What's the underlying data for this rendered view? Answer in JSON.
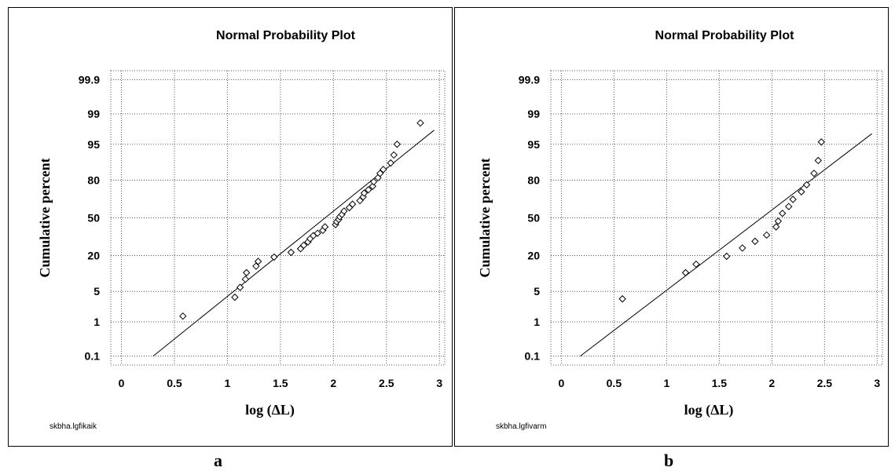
{
  "chart_data": [
    {
      "type": "scatter",
      "title": "Normal Probability Plot",
      "xlabel": "log (ΔL)",
      "ylabel": "Cumulative percent",
      "xlim": [
        -0.1,
        3.05
      ],
      "x_ticks": [
        0,
        0.5,
        1,
        1.5,
        2,
        2.5,
        3
      ],
      "y_ticks": [
        0.1,
        1,
        5,
        20,
        50,
        80,
        95,
        99,
        99.9
      ],
      "y_scale": "normal probability",
      "grid": true,
      "caption": "skbha.lgfikaik",
      "panel_label": "a",
      "points": [
        [
          0.58,
          1.4
        ],
        [
          1.07,
          3.8
        ],
        [
          1.12,
          6
        ],
        [
          1.17,
          8.5
        ],
        [
          1.18,
          11
        ],
        [
          1.27,
          14
        ],
        [
          1.29,
          16.5
        ],
        [
          1.44,
          19
        ],
        [
          1.6,
          22
        ],
        [
          1.69,
          24.5
        ],
        [
          1.72,
          27
        ],
        [
          1.76,
          29.5
        ],
        [
          1.78,
          32
        ],
        [
          1.81,
          34.5
        ],
        [
          1.85,
          36.5
        ],
        [
          1.9,
          39
        ],
        [
          1.92,
          42
        ],
        [
          2.02,
          44
        ],
        [
          2.03,
          46.5
        ],
        [
          2.05,
          48.5
        ],
        [
          2.06,
          51
        ],
        [
          2.08,
          53
        ],
        [
          2.1,
          56
        ],
        [
          2.15,
          59
        ],
        [
          2.18,
          62
        ],
        [
          2.25,
          65
        ],
        [
          2.28,
          68
        ],
        [
          2.29,
          71
        ],
        [
          2.33,
          73.5
        ],
        [
          2.37,
          76
        ],
        [
          2.38,
          79
        ],
        [
          2.42,
          81.5
        ],
        [
          2.44,
          84
        ],
        [
          2.47,
          86
        ],
        [
          2.54,
          89
        ],
        [
          2.57,
          92
        ],
        [
          2.6,
          95
        ],
        [
          2.82,
          98.3
        ]
      ],
      "fit_line": {
        "x": [
          0.3,
          2.95
        ],
        "y": [
          0.1,
          97.5
        ]
      }
    },
    {
      "type": "scatter",
      "title": "Normal Probability Plot",
      "xlabel": "log (ΔL)",
      "ylabel": "Cumulative percent",
      "xlim": [
        -0.1,
        3.05
      ],
      "x_ticks": [
        0,
        0.5,
        1,
        1.5,
        2,
        2.5,
        3
      ],
      "y_ticks": [
        0.1,
        1,
        5,
        20,
        50,
        80,
        95,
        99,
        99.9
      ],
      "y_scale": "normal probability",
      "grid": true,
      "caption": "skbha.lgfivarm",
      "panel_label": "b",
      "points": [
        [
          0.58,
          3.5
        ],
        [
          1.18,
          11
        ],
        [
          1.28,
          15
        ],
        [
          1.57,
          19.5
        ],
        [
          1.72,
          25
        ],
        [
          1.84,
          30
        ],
        [
          1.95,
          35
        ],
        [
          2.04,
          42
        ],
        [
          2.06,
          47
        ],
        [
          2.1,
          54
        ],
        [
          2.16,
          60
        ],
        [
          2.2,
          66
        ],
        [
          2.28,
          72
        ],
        [
          2.33,
          77
        ],
        [
          2.4,
          84
        ],
        [
          2.44,
          90
        ],
        [
          2.47,
          95.5
        ]
      ],
      "fit_line": {
        "x": [
          0.18,
          2.95
        ],
        "y": [
          0.1,
          97
        ]
      }
    }
  ]
}
